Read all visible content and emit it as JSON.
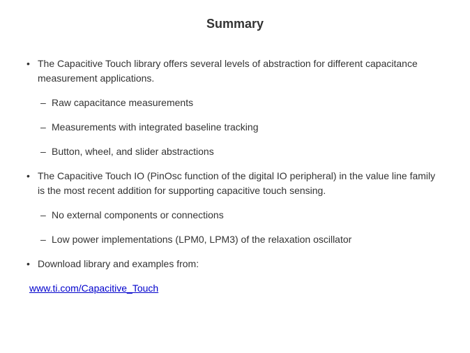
{
  "title": "Summary",
  "bullets": {
    "b1": {
      "text": "The Capacitive Touch library offers several levels of abstraction for different capacitance measurement applications.",
      "sub": {
        "s1": "Raw capacitance measurements",
        "s2": "Measurements with integrated baseline tracking",
        "s3": "Button, wheel, and slider abstractions"
      }
    },
    "b2": {
      "text": "The Capacitive Touch IO (PinOsc function of the digital IO peripheral) in the value line family is the most recent addition for supporting capacitive touch sensing.",
      "sub": {
        "s1": "No external components or connections",
        "s2": "Low power implementations (LPM0, LPM3) of the relaxation oscillator"
      }
    },
    "b3": {
      "text": "Download library and examples from:"
    }
  },
  "link": {
    "text": "www.ti.com/Capacitive_Touch",
    "href": "http://www.ti.com/Capacitive_Touch"
  },
  "colors": {
    "text": "#333333",
    "link": "#0000cc",
    "background": "#ffffff"
  },
  "typography": {
    "title_fontsize": 18,
    "title_weight": "bold",
    "body_fontsize": 14,
    "font_family": "Verdana"
  }
}
